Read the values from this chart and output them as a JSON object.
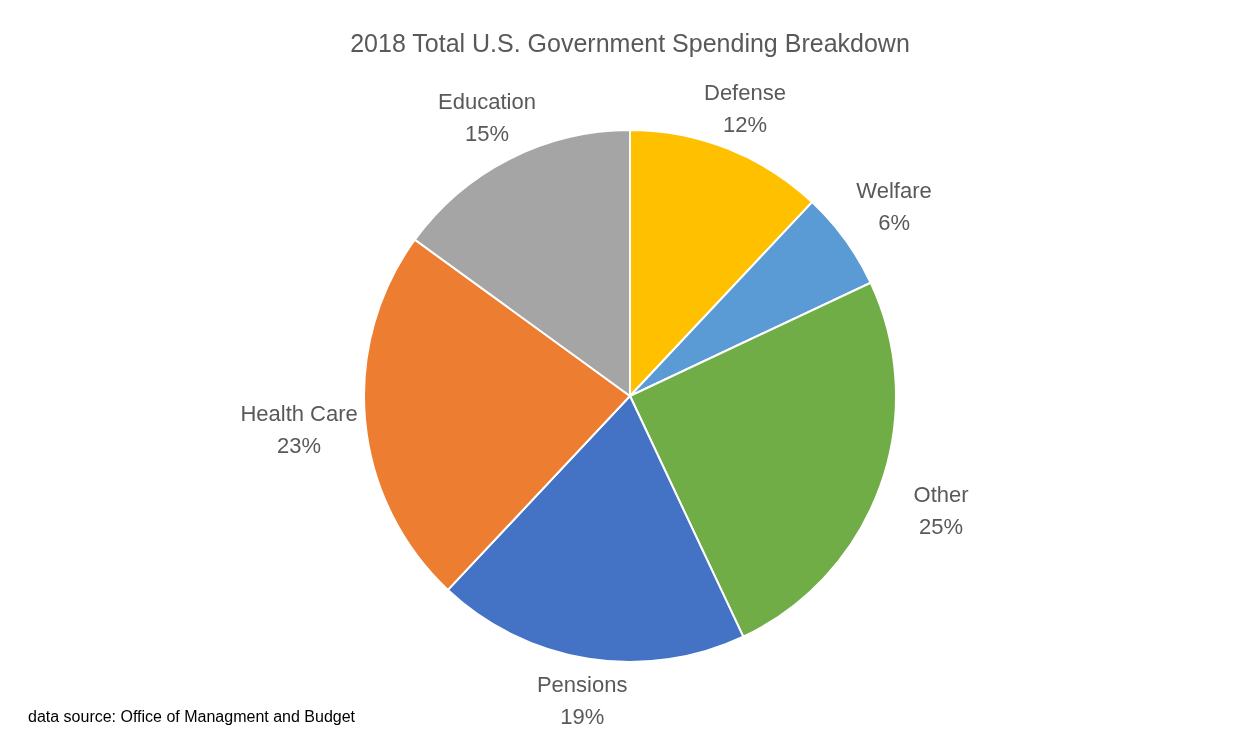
{
  "chart_data": {
    "type": "pie",
    "title": "2018 Total U.S. Government Spending Breakdown",
    "categories": [
      "Defense",
      "Welfare",
      "Other",
      "Pensions",
      "Health Care",
      "Education"
    ],
    "values": [
      12,
      6,
      25,
      19,
      23,
      15
    ],
    "value_labels": [
      "12%",
      "6%",
      "25%",
      "19%",
      "23%",
      "15%"
    ],
    "colors": [
      "#ffc000",
      "#5b9bd5",
      "#70ad47",
      "#4472c4",
      "#ed7d31",
      "#a5a5a5"
    ],
    "annotations": [
      "data source: Office of Managment and Budget"
    ],
    "legend": false
  }
}
